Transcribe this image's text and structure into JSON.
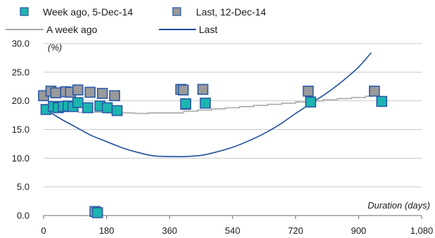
{
  "chart_data": {
    "type": "scatter",
    "ylabel": "(%)",
    "xlabel": "Duration (days)",
    "xlim": [
      0,
      1080
    ],
    "ylim": [
      0,
      30
    ],
    "xticks": [
      "0",
      "180",
      "360",
      "540",
      "720",
      "900",
      "1,080"
    ],
    "xtick_values": [
      0,
      180,
      360,
      540,
      720,
      900,
      1080
    ],
    "yticks": [
      "0.0",
      "5.0",
      "10.0",
      "15.0",
      "20.0",
      "25.0",
      "30.0"
    ],
    "ytick_values": [
      0,
      5,
      10,
      15,
      20,
      25,
      30
    ],
    "grid": "horizontal",
    "legend_position": "top",
    "series": [
      {
        "name": "Week ago, 5-Dec-14",
        "kind": "scatter",
        "marker": "square",
        "color": "#1bb5b0",
        "edge": "#2a5aa8",
        "points": [
          [
            7,
            18.5
          ],
          [
            28,
            19.0
          ],
          [
            42,
            18.8
          ],
          [
            56,
            19.0
          ],
          [
            70,
            19.1
          ],
          [
            84,
            19.0
          ],
          [
            98,
            19.7
          ],
          [
            126,
            18.8
          ],
          [
            154,
            0.5
          ],
          [
            161,
            19.1
          ],
          [
            182,
            18.8
          ],
          [
            210,
            18.3
          ],
          [
            406,
            19.4
          ],
          [
            406,
            19.5
          ],
          [
            462,
            19.6
          ],
          [
            763,
            19.8
          ],
          [
            966,
            19.9
          ]
        ]
      },
      {
        "name": "Last, 12-Dec-14",
        "kind": "scatter",
        "marker": "square",
        "color": "#9a9a9a",
        "edge": "#2a5aa8",
        "points": [
          [
            0,
            20.9
          ],
          [
            21,
            21.7
          ],
          [
            35,
            21.4
          ],
          [
            63,
            21.6
          ],
          [
            77,
            21.5
          ],
          [
            98,
            21.9
          ],
          [
            133,
            21.5
          ],
          [
            147,
            0.7
          ],
          [
            168,
            21.3
          ],
          [
            203,
            20.9
          ],
          [
            392,
            22.0
          ],
          [
            399,
            21.9
          ],
          [
            455,
            22.0
          ],
          [
            756,
            21.7
          ],
          [
            945,
            21.7
          ]
        ]
      },
      {
        "name": "A week ago",
        "kind": "step",
        "color": "#a8a8a8",
        "points": [
          [
            0,
            18.2
          ],
          [
            100,
            18.0
          ],
          [
            180,
            17.9
          ],
          [
            260,
            17.8
          ],
          [
            300,
            17.9
          ],
          [
            360,
            17.9
          ],
          [
            400,
            18.2
          ],
          [
            440,
            18.4
          ],
          [
            480,
            18.6
          ],
          [
            520,
            18.8
          ],
          [
            560,
            19.0
          ],
          [
            600,
            19.2
          ],
          [
            640,
            19.4
          ],
          [
            680,
            19.6
          ],
          [
            720,
            19.8
          ],
          [
            760,
            20.0
          ],
          [
            800,
            20.2
          ],
          [
            840,
            20.4
          ],
          [
            880,
            20.6
          ],
          [
            920,
            20.8
          ],
          [
            940,
            20.8
          ]
        ]
      },
      {
        "name": "Last",
        "kind": "line",
        "color": "#1f4e9a",
        "points": [
          [
            0,
            18.8
          ],
          [
            45,
            17.0
          ],
          [
            90,
            15.5
          ],
          [
            135,
            14.0
          ],
          [
            180,
            12.9
          ],
          [
            225,
            11.8
          ],
          [
            270,
            11.0
          ],
          [
            315,
            10.4
          ],
          [
            360,
            10.3
          ],
          [
            405,
            10.3
          ],
          [
            450,
            10.5
          ],
          [
            495,
            11.1
          ],
          [
            540,
            11.9
          ],
          [
            585,
            13.0
          ],
          [
            630,
            14.3
          ],
          [
            675,
            15.9
          ],
          [
            720,
            17.8
          ],
          [
            765,
            19.6
          ],
          [
            810,
            21.4
          ],
          [
            855,
            23.5
          ],
          [
            900,
            25.9
          ],
          [
            936,
            28.4
          ]
        ]
      }
    ]
  }
}
